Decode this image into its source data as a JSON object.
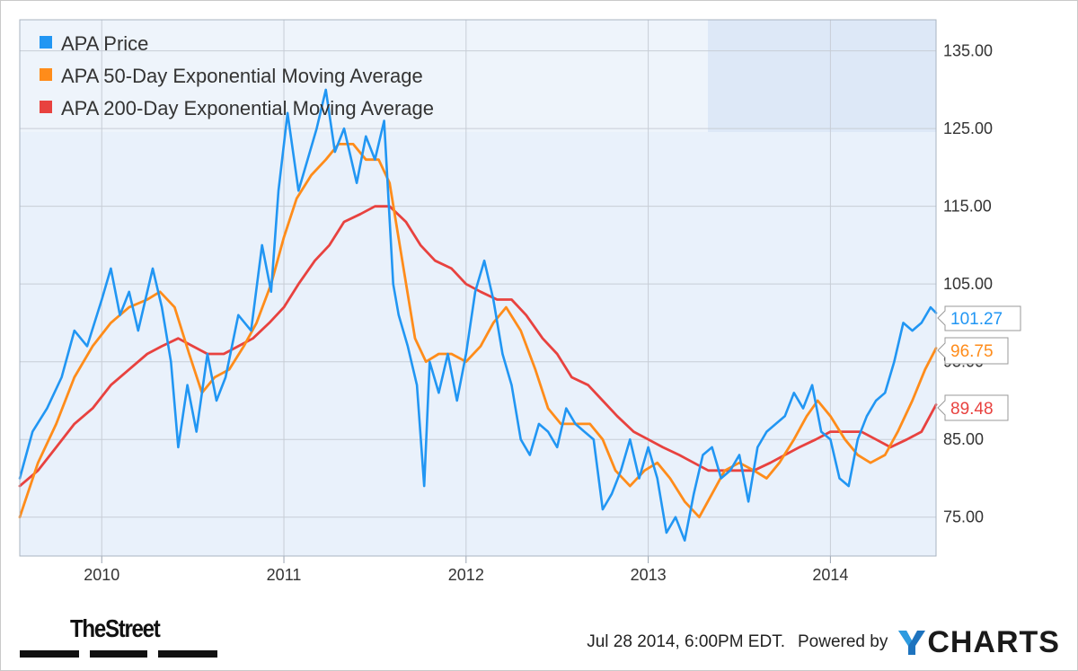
{
  "chart_data": {
    "type": "line",
    "title": "",
    "xlabel": "",
    "ylabel": "",
    "x_ticks": [
      "2010",
      "2011",
      "2012",
      "2013",
      "2014"
    ],
    "y_ticks": [
      "75.00",
      "85.00",
      "95.00",
      "105.00",
      "115.00",
      "125.00",
      "135.00"
    ],
    "ylim": [
      70,
      139
    ],
    "xlim": [
      2009.55,
      2014.58
    ],
    "grid": true,
    "legend_position": "top-left",
    "series": [
      {
        "name": "APA Price",
        "color": "#2196f3",
        "last_value_label": "101.27",
        "x": [
          2009.55,
          2009.62,
          2009.7,
          2009.78,
          2009.85,
          2009.92,
          2010.0,
          2010.05,
          2010.1,
          2010.15,
          2010.2,
          2010.28,
          2010.33,
          2010.38,
          2010.42,
          2010.47,
          2010.52,
          2010.58,
          2010.63,
          2010.68,
          2010.75,
          2010.82,
          2010.88,
          2010.93,
          2010.97,
          2011.02,
          2011.08,
          2011.13,
          2011.18,
          2011.23,
          2011.28,
          2011.33,
          2011.4,
          2011.45,
          2011.5,
          2011.55,
          2011.6,
          2011.63,
          2011.68,
          2011.73,
          2011.77,
          2011.8,
          2011.85,
          2011.9,
          2011.95,
          2012.0,
          2012.05,
          2012.1,
          2012.15,
          2012.2,
          2012.25,
          2012.3,
          2012.35,
          2012.4,
          2012.45,
          2012.5,
          2012.55,
          2012.6,
          2012.65,
          2012.7,
          2012.75,
          2012.8,
          2012.85,
          2012.9,
          2012.95,
          2013.0,
          2013.05,
          2013.1,
          2013.15,
          2013.2,
          2013.25,
          2013.3,
          2013.35,
          2013.4,
          2013.45,
          2013.5,
          2013.55,
          2013.6,
          2013.65,
          2013.7,
          2013.75,
          2013.8,
          2013.85,
          2013.9,
          2013.95,
          2014.0,
          2014.05,
          2014.1,
          2014.15,
          2014.2,
          2014.25,
          2014.3,
          2014.35,
          2014.4,
          2014.45,
          2014.5,
          2014.55,
          2014.58
        ],
        "y": [
          80,
          86,
          89,
          93,
          99,
          97,
          103,
          107,
          101,
          104,
          99,
          107,
          102,
          95,
          84,
          92,
          86,
          96,
          90,
          93,
          101,
          99,
          110,
          104,
          117,
          127,
          117,
          121,
          125,
          130,
          122,
          125,
          118,
          124,
          121,
          126,
          105,
          101,
          97,
          92,
          79,
          95,
          91,
          96,
          90,
          96,
          104,
          108,
          103,
          96,
          92,
          85,
          83,
          87,
          86,
          84,
          89,
          87,
          86,
          85,
          76,
          78,
          81,
          85,
          80,
          84,
          80,
          73,
          75,
          72,
          78,
          83,
          84,
          80,
          81,
          83,
          77,
          84,
          86,
          87,
          88,
          91,
          89,
          92,
          86,
          85,
          80,
          79,
          85,
          88,
          90,
          91,
          95,
          100,
          99,
          100,
          102,
          101.27
        ]
      },
      {
        "name": "APA 50-Day Exponential Moving Average",
        "color": "#ff8c1a",
        "last_value_label": "96.75",
        "x": [
          2009.55,
          2009.65,
          2009.75,
          2009.85,
          2009.95,
          2010.05,
          2010.15,
          2010.25,
          2010.32,
          2010.4,
          2010.48,
          2010.55,
          2010.62,
          2010.7,
          2010.78,
          2010.85,
          2010.93,
          2011.0,
          2011.07,
          2011.15,
          2011.23,
          2011.3,
          2011.38,
          2011.45,
          2011.52,
          2011.58,
          2011.65,
          2011.72,
          2011.78,
          2011.85,
          2011.92,
          2012.0,
          2012.08,
          2012.15,
          2012.22,
          2012.3,
          2012.38,
          2012.45,
          2012.52,
          2012.6,
          2012.68,
          2012.75,
          2012.82,
          2012.9,
          2012.98,
          2013.05,
          2013.12,
          2013.2,
          2013.28,
          2013.35,
          2013.42,
          2013.5,
          2013.58,
          2013.65,
          2013.72,
          2013.8,
          2013.87,
          2013.93,
          2014.0,
          2014.08,
          2014.15,
          2014.22,
          2014.3,
          2014.37,
          2014.45,
          2014.52,
          2014.58
        ],
        "y": [
          75,
          82,
          87,
          93,
          97,
          100,
          102,
          103,
          104,
          102,
          96,
          91,
          93,
          94,
          97,
          100,
          105,
          111,
          116,
          119,
          121,
          123,
          123,
          121,
          121,
          118,
          108,
          98,
          95,
          96,
          96,
          95,
          97,
          100,
          102,
          99,
          94,
          89,
          87,
          87,
          87,
          85,
          81,
          79,
          81,
          82,
          80,
          77,
          75,
          78,
          81,
          82,
          81,
          80,
          82,
          85,
          88,
          90,
          88,
          85,
          83,
          82,
          83,
          86,
          90,
          94,
          96.75
        ]
      },
      {
        "name": "APA 200-Day Exponential Moving Average",
        "color": "#e8423f",
        "last_value_label": "89.48",
        "x": [
          2009.55,
          2009.65,
          2009.75,
          2009.85,
          2009.95,
          2010.05,
          2010.15,
          2010.25,
          2010.33,
          2010.42,
          2010.5,
          2010.58,
          2010.67,
          2010.75,
          2010.83,
          2010.92,
          2011.0,
          2011.08,
          2011.17,
          2011.25,
          2011.33,
          2011.42,
          2011.5,
          2011.58,
          2011.67,
          2011.75,
          2011.83,
          2011.92,
          2012.0,
          2012.08,
          2012.17,
          2012.25,
          2012.33,
          2012.42,
          2012.5,
          2012.58,
          2012.67,
          2012.75,
          2012.83,
          2012.92,
          2013.0,
          2013.08,
          2013.17,
          2013.25,
          2013.33,
          2013.42,
          2013.5,
          2013.58,
          2013.67,
          2013.75,
          2013.83,
          2013.92,
          2014.0,
          2014.08,
          2014.17,
          2014.25,
          2014.33,
          2014.42,
          2014.5,
          2014.58
        ],
        "y": [
          79,
          81,
          84,
          87,
          89,
          92,
          94,
          96,
          97,
          98,
          97,
          96,
          96,
          97,
          98,
          100,
          102,
          105,
          108,
          110,
          113,
          114,
          115,
          115,
          113,
          110,
          108,
          107,
          105,
          104,
          103,
          103,
          101,
          98,
          96,
          93,
          92,
          90,
          88,
          86,
          85,
          84,
          83,
          82,
          81,
          81,
          81,
          81,
          82,
          83,
          84,
          85,
          86,
          86,
          86,
          85,
          84,
          85,
          86,
          89.48
        ]
      }
    ]
  },
  "footer": {
    "timestamp": "Jul 28 2014, 6:00PM EDT.",
    "powered_by": "Powered by",
    "ycharts": "CHARTS"
  },
  "logo": {
    "thestreet": "TheStreet"
  }
}
